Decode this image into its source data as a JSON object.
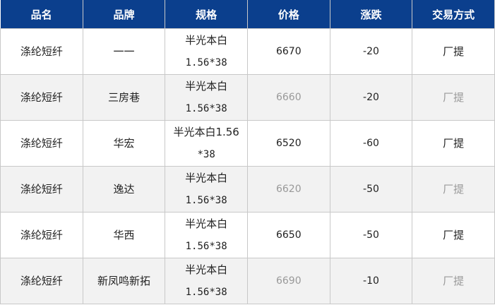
{
  "header_color": "#0b3f8d",
  "columns": [
    "品名",
    "品牌",
    "规格",
    "价格",
    "涨跌",
    "交易方式"
  ],
  "rows": [
    {
      "name": "涤纶短纤",
      "brand": "一一",
      "spec": [
        "半光本白",
        "1.56*38"
      ],
      "price": "6670",
      "change": "-20",
      "trade": "厂提"
    },
    {
      "name": "涤纶短纤",
      "brand": "三房巷",
      "spec": [
        "半光本白",
        "1.56*38"
      ],
      "price": "6660",
      "change": "-20",
      "trade": "厂提"
    },
    {
      "name": "涤纶短纤",
      "brand": "华宏",
      "spec": [
        "半光本白1.56",
        "*38"
      ],
      "price": "6520",
      "change": "-60",
      "trade": "厂提"
    },
    {
      "name": "涤纶短纤",
      "brand": "逸达",
      "spec": [
        "半光本白",
        "1.56*38"
      ],
      "price": "6620",
      "change": "-50",
      "trade": "厂提"
    },
    {
      "name": "涤纶短纤",
      "brand": "华西",
      "spec": [
        "半光本白",
        "1.56*38"
      ],
      "price": "6650",
      "change": "-50",
      "trade": "厂提"
    },
    {
      "name": "涤纶短纤",
      "brand": "新凤鸣新拓",
      "spec": [
        "半光本白",
        "1.56*38"
      ],
      "price": "6690",
      "change": "-10",
      "trade": "厂提"
    }
  ]
}
